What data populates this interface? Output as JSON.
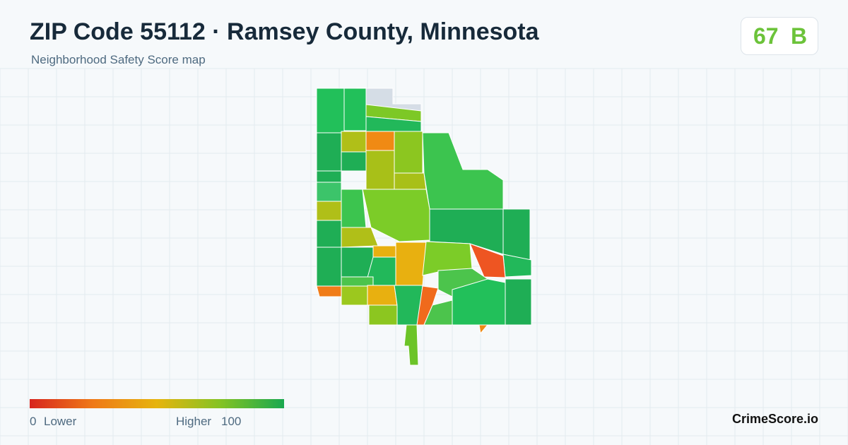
{
  "header": {
    "title": "ZIP Code 55112 · Ramsey County, Minnesota",
    "subtitle": "Neighborhood Safety Score map"
  },
  "badge": {
    "score": "67",
    "grade": "B"
  },
  "legend": {
    "min": "0",
    "low": "Lower",
    "high": "Higher",
    "max": "100"
  },
  "brand": "CrimeScore.io"
}
